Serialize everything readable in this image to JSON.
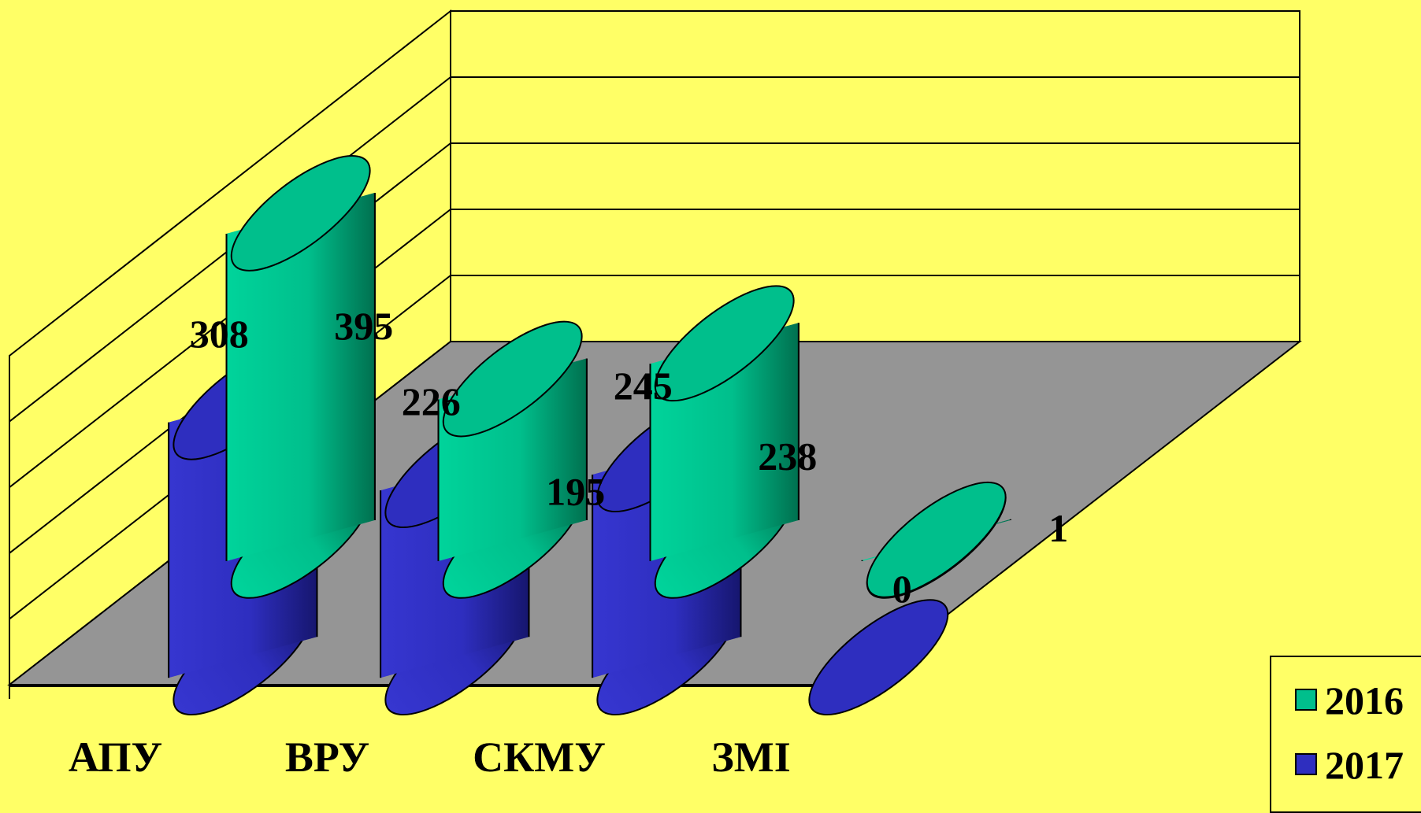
{
  "chart_data": {
    "type": "bar",
    "categories": [
      "АПУ",
      "ВРУ",
      "СКМУ",
      "ЗМІ"
    ],
    "series": [
      {
        "name": "2016",
        "values": [
          395,
          195,
          238,
          1
        ],
        "color": "#00BF8C"
      },
      {
        "name": "2017",
        "values": [
          308,
          226,
          245,
          0
        ],
        "color": "#2E2EBF"
      }
    ],
    "ylim": [
      0,
      500
    ],
    "grid": true,
    "legend_position": "bottom-right"
  },
  "colors": {
    "background": "#FFFF66",
    "floor": "#959595",
    "series_2016": "#00BF8C",
    "series_2017": "#2E2EBF"
  }
}
